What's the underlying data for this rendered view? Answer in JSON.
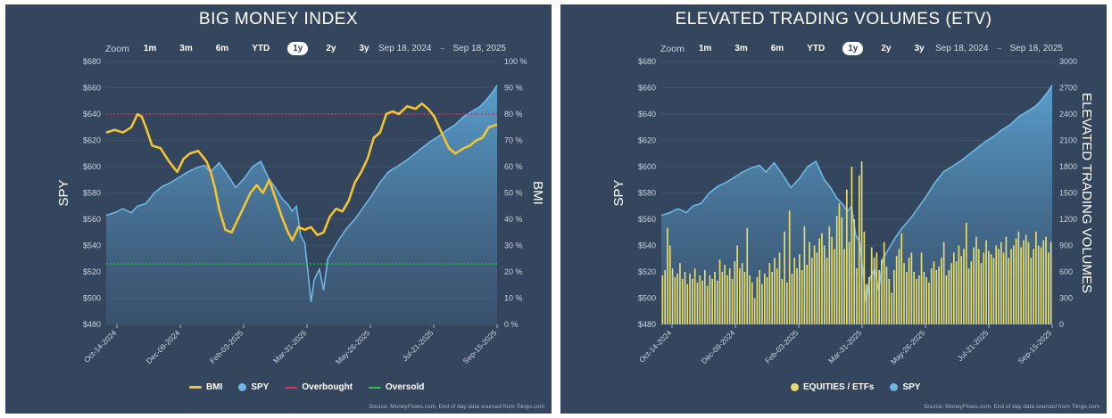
{
  "chart_data": [
    {
      "type": "line",
      "title": "BIG MONEY INDEX",
      "xlabel": "",
      "ylabel_left": "SPY",
      "ylabel_right": "BMI",
      "ylim_left": [
        480,
        680
      ],
      "ylim_right": [
        0,
        100
      ],
      "yticks_left": [
        "$680",
        "$660",
        "$640",
        "$620",
        "$600",
        "$580",
        "$560",
        "$540",
        "$520",
        "$500",
        "$480"
      ],
      "yticks_right": [
        "100 %",
        "90 %",
        "80 %",
        "70 %",
        "60 %",
        "50 %",
        "40 %",
        "30 %",
        "20 %",
        "10 %",
        "0 %"
      ],
      "xticks": [
        "Oct-14-2024",
        "Dec-09-2024",
        "Feb-03-2025",
        "Mar-31-2025",
        "May-26-2025",
        "Jul-21-2025",
        "Sep-15-2025"
      ],
      "zoom": {
        "label": "Zoom",
        "options": [
          "1m",
          "3m",
          "6m",
          "YTD",
          "1y",
          "2y",
          "3y"
        ],
        "active": "1y"
      },
      "date_range": {
        "from": "Sep 18, 2024",
        "to": "Sep 18, 2025"
      },
      "reference_lines": [
        {
          "name": "Overbought",
          "value": 80,
          "color": "#d6305c"
        },
        {
          "name": "Oversold",
          "value": 23,
          "color": "#29c24b"
        }
      ],
      "series": [
        {
          "name": "BMI",
          "axis": "right",
          "color": "#f2c432",
          "points": [
            [
              0,
              73
            ],
            [
              8,
              74
            ],
            [
              16,
              73
            ],
            [
              24,
              75
            ],
            [
              30,
              80
            ],
            [
              34,
              79
            ],
            [
              38,
              75
            ],
            [
              44,
              68
            ],
            [
              52,
              67
            ],
            [
              60,
              62
            ],
            [
              68,
              58
            ],
            [
              74,
              63
            ],
            [
              80,
              65
            ],
            [
              88,
              66
            ],
            [
              96,
              62
            ],
            [
              100,
              58
            ],
            [
              104,
              52
            ],
            [
              108,
              44
            ],
            [
              114,
              36
            ],
            [
              120,
              35
            ],
            [
              126,
              40
            ],
            [
              132,
              45
            ],
            [
              138,
              50
            ],
            [
              144,
              53
            ],
            [
              150,
              50
            ],
            [
              156,
              55
            ],
            [
              162,
              48
            ],
            [
              168,
              41
            ],
            [
              174,
              35
            ],
            [
              178,
              32
            ],
            [
              184,
              37
            ],
            [
              190,
              36
            ],
            [
              196,
              37
            ],
            [
              202,
              34
            ],
            [
              208,
              35
            ],
            [
              214,
              41
            ],
            [
              220,
              44
            ],
            [
              226,
              43
            ],
            [
              232,
              47
            ],
            [
              238,
              54
            ],
            [
              244,
              58
            ],
            [
              250,
              63
            ],
            [
              256,
              71
            ],
            [
              262,
              73
            ],
            [
              268,
              80
            ],
            [
              274,
              81
            ],
            [
              280,
              80
            ],
            [
              288,
              83
            ],
            [
              296,
              82
            ],
            [
              302,
              84
            ],
            [
              308,
              82
            ],
            [
              314,
              79
            ],
            [
              322,
              72
            ],
            [
              328,
              67
            ],
            [
              334,
              65
            ],
            [
              342,
              67
            ],
            [
              348,
              68
            ],
            [
              354,
              70
            ],
            [
              360,
              71
            ],
            [
              366,
              75
            ],
            [
              374,
              76
            ]
          ]
        },
        {
          "name": "SPY",
          "axis": "left",
          "color": "#6fb7e3",
          "points": [
            [
              0,
              563
            ],
            [
              8,
              565
            ],
            [
              16,
              568
            ],
            [
              24,
              565
            ],
            [
              30,
              570
            ],
            [
              38,
              572
            ],
            [
              46,
              580
            ],
            [
              54,
              585
            ],
            [
              62,
              588
            ],
            [
              70,
              592
            ],
            [
              78,
              596
            ],
            [
              86,
              599
            ],
            [
              94,
              601
            ],
            [
              100,
              596
            ],
            [
              108,
              603
            ],
            [
              116,
              594
            ],
            [
              124,
              584
            ],
            [
              132,
              591
            ],
            [
              140,
              600
            ],
            [
              148,
              604
            ],
            [
              156,
              590
            ],
            [
              162,
              584
            ],
            [
              168,
              576
            ],
            [
              174,
              571
            ],
            [
              178,
              566
            ],
            [
              182,
              570
            ],
            [
              186,
              548
            ],
            [
              190,
              542
            ],
            [
              193,
              520
            ],
            [
              196,
              497
            ],
            [
              199,
              514
            ],
            [
              204,
              522
            ],
            [
              208,
              506
            ],
            [
              212,
              530
            ],
            [
              218,
              538
            ],
            [
              224,
              546
            ],
            [
              230,
              553
            ],
            [
              238,
              560
            ],
            [
              246,
              569
            ],
            [
              254,
              578
            ],
            [
              262,
              588
            ],
            [
              270,
              596
            ],
            [
              278,
              600
            ],
            [
              286,
              604
            ],
            [
              294,
              609
            ],
            [
              302,
              614
            ],
            [
              310,
              619
            ],
            [
              318,
              623
            ],
            [
              326,
              628
            ],
            [
              334,
              632
            ],
            [
              342,
              638
            ],
            [
              350,
              642
            ],
            [
              358,
              646
            ],
            [
              364,
              651
            ],
            [
              370,
              657
            ],
            [
              374,
              662
            ]
          ]
        }
      ]
    },
    {
      "type": "bar",
      "title": "ELEVATED TRADING VOLUMES (ETV)",
      "xlabel": "",
      "ylabel_left": "SPY",
      "ylabel_right": "ELEVATED TRADING VOLUMES",
      "ylim_left": [
        480,
        680
      ],
      "ylim_right": [
        0,
        3000
      ],
      "yticks_left": [
        "$680",
        "$660",
        "$640",
        "$620",
        "$600",
        "$580",
        "$560",
        "$540",
        "$520",
        "$500",
        "$480"
      ],
      "yticks_right": [
        "3000",
        "2700",
        "2400",
        "2100",
        "1800",
        "1500",
        "1200",
        "900",
        "600",
        "300",
        "0"
      ],
      "xticks": [
        "Oct-14-2024",
        "Dec-09-2024",
        "Feb-03-2025",
        "Mar-31-2025",
        "May-26-2025",
        "Jul-21-2025",
        "Sep-15-2025"
      ],
      "zoom": {
        "label": "Zoom",
        "options": [
          "1m",
          "3m",
          "6m",
          "YTD",
          "1y",
          "2y",
          "3y"
        ],
        "active": "1y"
      },
      "date_range": {
        "from": "Sep 18, 2024",
        "to": "Sep 18, 2025"
      },
      "series": [
        {
          "name": "EQUITIES / ETFs",
          "axis": "right",
          "color": "#e6dd6f",
          "values": [
            560,
            620,
            1100,
            900,
            640,
            540,
            580,
            700,
            520,
            600,
            460,
            580,
            520,
            640,
            480,
            560,
            500,
            620,
            440,
            560,
            520,
            600,
            500,
            740,
            600,
            680,
            560,
            640,
            520,
            720,
            900,
            640,
            700,
            600,
            1100,
            560,
            480,
            300,
            540,
            620,
            460,
            580,
            540,
            700,
            600,
            760,
            640,
            820,
            520,
            1060,
            480,
            1300,
            580,
            760,
            640,
            800,
            620,
            1120,
            680,
            940,
            760,
            900,
            820,
            980,
            1040,
            900,
            760,
            1120,
            1000,
            860,
            1240,
            1380,
            1220,
            860,
            1540,
            940,
            1800,
            1200,
            640,
            1700,
            1860,
            1060,
            460,
            540,
            880,
            760,
            820,
            620,
            740,
            940,
            660,
            520,
            360,
            620,
            780,
            860,
            1040,
            700,
            600,
            760,
            820,
            600,
            520,
            560,
            820,
            600,
            540,
            480,
            640,
            720,
            620,
            660,
            760,
            940,
            560,
            620,
            700,
            820,
            720,
            900,
            780,
            860,
            1160,
            640,
            720,
            880,
            1000,
            860,
            700,
            820,
            960,
            840,
            800,
            760,
            900,
            860,
            940,
            820,
            1000,
            760,
            860,
            900,
            980,
            1060,
            880,
            960,
            1020,
            940,
            760,
            860,
            1060,
            900,
            880,
            960,
            1000,
            820,
            940
          ]
        },
        {
          "name": "SPY",
          "axis": "left",
          "color": "#6fb7e3",
          "points": [
            [
              0,
              563
            ],
            [
              8,
              565
            ],
            [
              16,
              568
            ],
            [
              24,
              565
            ],
            [
              30,
              570
            ],
            [
              38,
              572
            ],
            [
              46,
              580
            ],
            [
              54,
              585
            ],
            [
              62,
              588
            ],
            [
              70,
              592
            ],
            [
              78,
              596
            ],
            [
              86,
              599
            ],
            [
              94,
              601
            ],
            [
              100,
              596
            ],
            [
              108,
              603
            ],
            [
              116,
              594
            ],
            [
              124,
              584
            ],
            [
              132,
              591
            ],
            [
              140,
              600
            ],
            [
              148,
              604
            ],
            [
              156,
              590
            ],
            [
              162,
              584
            ],
            [
              168,
              576
            ],
            [
              174,
              571
            ],
            [
              178,
              566
            ],
            [
              182,
              570
            ],
            [
              186,
              548
            ],
            [
              190,
              542
            ],
            [
              193,
              520
            ],
            [
              196,
              497
            ],
            [
              199,
              514
            ],
            [
              204,
              522
            ],
            [
              208,
              506
            ],
            [
              212,
              530
            ],
            [
              218,
              538
            ],
            [
              224,
              546
            ],
            [
              230,
              553
            ],
            [
              238,
              560
            ],
            [
              246,
              569
            ],
            [
              254,
              578
            ],
            [
              262,
              588
            ],
            [
              270,
              596
            ],
            [
              278,
              600
            ],
            [
              286,
              604
            ],
            [
              294,
              609
            ],
            [
              302,
              614
            ],
            [
              310,
              619
            ],
            [
              318,
              623
            ],
            [
              326,
              628
            ],
            [
              334,
              632
            ],
            [
              342,
              638
            ],
            [
              350,
              642
            ],
            [
              358,
              646
            ],
            [
              364,
              651
            ],
            [
              370,
              657
            ],
            [
              374,
              662
            ]
          ]
        }
      ]
    }
  ],
  "source_text": "Source: MoneyFlows.com, End of day data sourced from Tiingo.com",
  "colors": {
    "panel": "#34465e",
    "bmi": "#f2c432",
    "spy": "#6fb7e3",
    "etv": "#e6dd6f",
    "grid": "#4a5c74"
  }
}
